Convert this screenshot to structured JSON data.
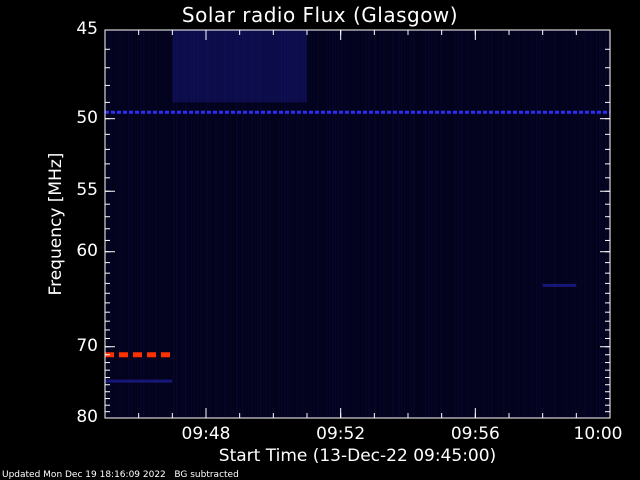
{
  "chart_data": {
    "type": "heatmap",
    "title": "Solar radio Flux (Glasgow)",
    "xlabel": "Start Time (13-Dec-22 09:45:00)",
    "ylabel": "Frequency [MHz]",
    "x_ticks": [
      "09:48",
      "09:52",
      "09:56",
      "10:00"
    ],
    "y_ticks": [
      "45",
      "50",
      "55",
      "60",
      "70",
      "80"
    ],
    "xlim": [
      "09:45",
      "10:00"
    ],
    "ylim": [
      80,
      45
    ],
    "y_scale": "reciprocal",
    "colors": {
      "background": "#000000",
      "plot_background": "#02021a",
      "intensity_low": "#0a0a40",
      "intensity_mid": "#2020a0",
      "intensity_high": "#3030ff",
      "rfi_band_color": "#ff3000"
    },
    "features": [
      {
        "description": "continuous interference band",
        "frequency_mhz": 49.6,
        "time_start": "09:45",
        "time_end": "10:00",
        "color": "intensity_high"
      },
      {
        "description": "strong interference band",
        "frequency_mhz": 71.0,
        "time_start": "09:45",
        "time_end": "09:47",
        "color": "rfi_band_color"
      },
      {
        "description": "weak band",
        "frequency_mhz": 74.5,
        "time_start": "09:45",
        "time_end": "09:47",
        "color": "intensity_mid"
      },
      {
        "description": "brighter emission patch",
        "frequency_mhz_range": [
          45,
          49
        ],
        "time_start": "09:47",
        "time_end": "09:51",
        "color": "intensity_mid"
      },
      {
        "description": "feature",
        "frequency_mhz": 63.2,
        "time_start": "09:58",
        "time_end": "09:59",
        "color": "intensity_mid"
      }
    ]
  },
  "footer": {
    "updated": "Updated Mon Dec 19 18:16:09 2022",
    "note": "BG subtracted"
  }
}
